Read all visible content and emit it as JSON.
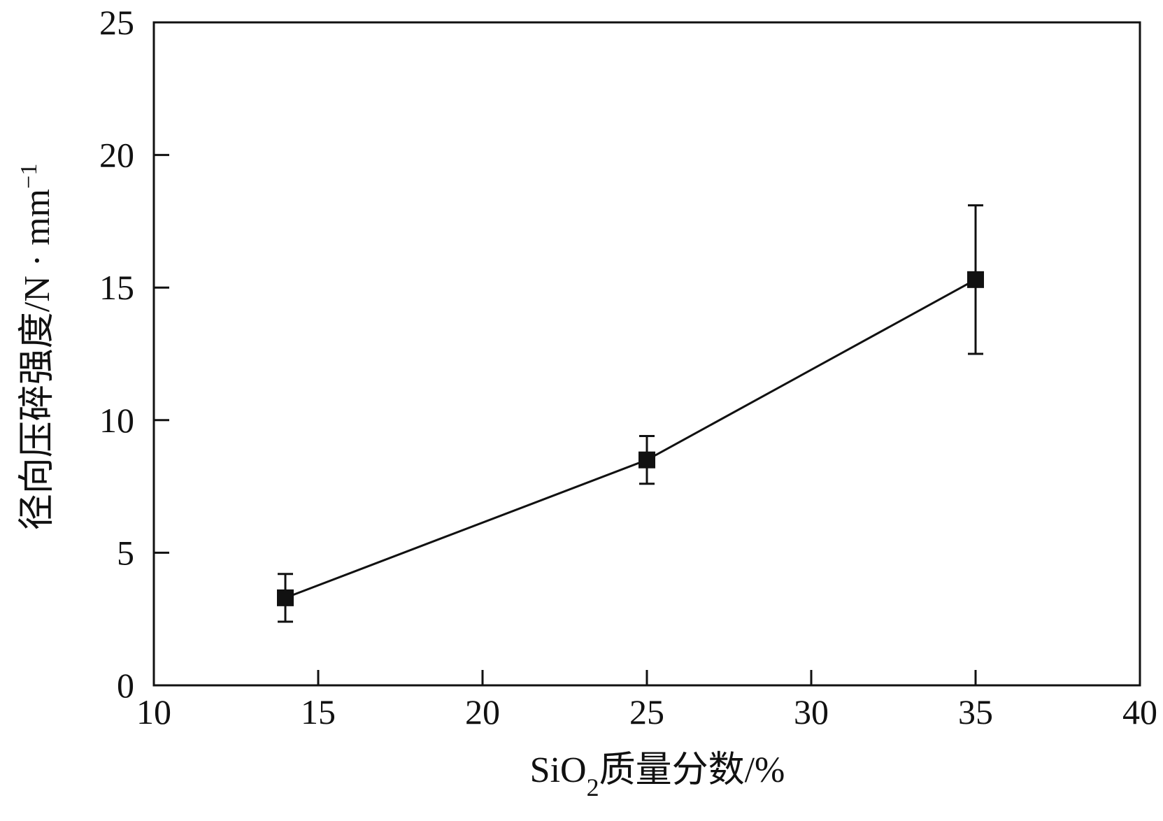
{
  "chart_data": {
    "type": "line",
    "x": [
      14,
      25,
      35
    ],
    "series": [
      {
        "values": [
          3.3,
          8.5,
          15.3
        ],
        "error": [
          [
            0.9,
            0.9
          ],
          [
            0.9,
            0.9
          ],
          [
            2.8,
            2.8
          ]
        ],
        "marker": "square"
      }
    ],
    "xlabel": {
      "prefix": "SiO",
      "subscript": "2",
      "suffix": "质量分数/%"
    },
    "ylabel": {
      "base": "径向压碎强度/N · mm",
      "superscript": "−1"
    },
    "xlim": [
      10,
      40
    ],
    "ylim": [
      0,
      25
    ],
    "xticks": [
      "10",
      "15",
      "20",
      "25",
      "30",
      "35",
      "40"
    ],
    "yticks": [
      "0",
      "5",
      "10",
      "15",
      "20",
      "25"
    ],
    "grid": false,
    "colors": {
      "line": "#111111",
      "marker": "#111111",
      "axis": "#111111"
    }
  }
}
